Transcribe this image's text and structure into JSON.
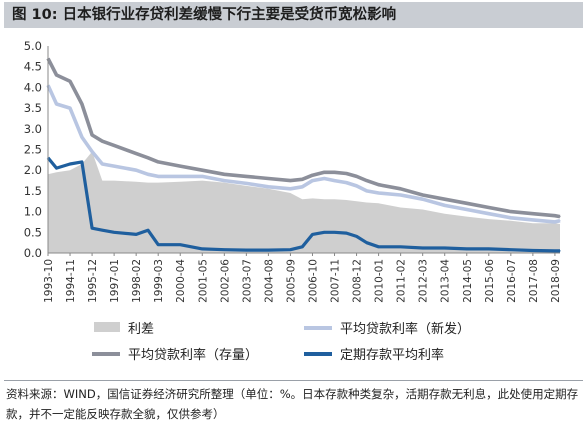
{
  "figure": {
    "title": "图 10: 日本银行业存贷利差缓慢下行主要是受货币宽松影响",
    "source": "资料来源：WIND，国信证券经济研究所整理（单位：%。日本存款种类复杂，活期存款无利息，此处使用定期存款，并不一定能反映存款全貌，仅供参考）"
  },
  "colors": {
    "spread": "#cfcfcf",
    "new_loan": "#b9c6e2",
    "stock_loan": "#8c8f9a",
    "deposit": "#1f5f9e",
    "band": "#c9cdd3"
  },
  "chart_data": {
    "type": "line",
    "title": "",
    "xlabel": "",
    "ylabel": "",
    "ylim": [
      0,
      5
    ],
    "yticks": [
      "0.0",
      "0.5",
      "1.0",
      "1.5",
      "2.0",
      "2.5",
      "3.0",
      "3.5",
      "4.0",
      "4.5",
      "5.0"
    ],
    "xticks": [
      "1993-10",
      "1994-11",
      "1995-12",
      "1997-01",
      "1998-02",
      "1999-03",
      "2000-04",
      "2001-05",
      "2002-06",
      "2003-07",
      "2004-08",
      "2005-09",
      "2006-10",
      "2007-11",
      "2008-12",
      "2010-01",
      "2011-02",
      "2012-03",
      "2013-04",
      "2014-05",
      "2015-06",
      "2016-07",
      "2017-08",
      "2018-09"
    ],
    "x": [
      "1993-10",
      "1994-03",
      "1994-11",
      "1995-06",
      "1995-12",
      "1996-06",
      "1997-01",
      "1998-02",
      "1998-09",
      "1999-03",
      "2000-04",
      "2001-05",
      "2002-06",
      "2003-07",
      "2004-08",
      "2005-09",
      "2006-04",
      "2006-10",
      "2007-05",
      "2007-11",
      "2008-06",
      "2008-12",
      "2009-06",
      "2010-01",
      "2011-02",
      "2012-03",
      "2013-04",
      "2014-05",
      "2015-06",
      "2016-07",
      "2017-08",
      "2018-09",
      "2018-12"
    ],
    "series": [
      {
        "name": "利差",
        "type": "area",
        "color": "#cfcfcf",
        "values": [
          1.9,
          1.95,
          2.0,
          2.15,
          2.45,
          1.75,
          1.75,
          1.72,
          1.7,
          1.7,
          1.72,
          1.75,
          1.7,
          1.62,
          1.55,
          1.45,
          1.3,
          1.32,
          1.3,
          1.3,
          1.28,
          1.25,
          1.22,
          1.2,
          1.1,
          1.05,
          0.95,
          0.88,
          0.82,
          0.78,
          0.72,
          0.72,
          0.7
        ]
      },
      {
        "name": "平均贷款利率（新发）",
        "type": "line",
        "color": "#b9c6e2",
        "values": [
          4.05,
          3.6,
          3.5,
          2.8,
          2.45,
          2.15,
          2.1,
          2.0,
          1.9,
          1.85,
          1.85,
          1.85,
          1.75,
          1.68,
          1.6,
          1.55,
          1.6,
          1.75,
          1.8,
          1.75,
          1.7,
          1.62,
          1.5,
          1.45,
          1.4,
          1.3,
          1.15,
          1.05,
          0.95,
          0.85,
          0.8,
          0.75,
          0.78
        ]
      },
      {
        "name": "平均贷款利率（存量）",
        "type": "line",
        "color": "#8c8f9a",
        "values": [
          4.7,
          4.3,
          4.15,
          3.6,
          2.85,
          2.7,
          2.6,
          2.4,
          2.3,
          2.2,
          2.1,
          2.0,
          1.9,
          1.85,
          1.8,
          1.75,
          1.78,
          1.88,
          1.95,
          1.95,
          1.92,
          1.85,
          1.75,
          1.65,
          1.55,
          1.4,
          1.3,
          1.2,
          1.1,
          1.0,
          0.95,
          0.9,
          0.88
        ]
      },
      {
        "name": "定期存款平均利率",
        "type": "line",
        "color": "#1f5f9e",
        "values": [
          2.3,
          2.05,
          2.15,
          2.2,
          0.6,
          0.55,
          0.5,
          0.45,
          0.55,
          0.2,
          0.2,
          0.1,
          0.08,
          0.07,
          0.07,
          0.08,
          0.15,
          0.45,
          0.5,
          0.5,
          0.48,
          0.4,
          0.25,
          0.15,
          0.15,
          0.12,
          0.12,
          0.1,
          0.1,
          0.08,
          0.06,
          0.05,
          0.05
        ]
      }
    ],
    "legend": {
      "placement": "bottom",
      "columns": 2
    }
  }
}
